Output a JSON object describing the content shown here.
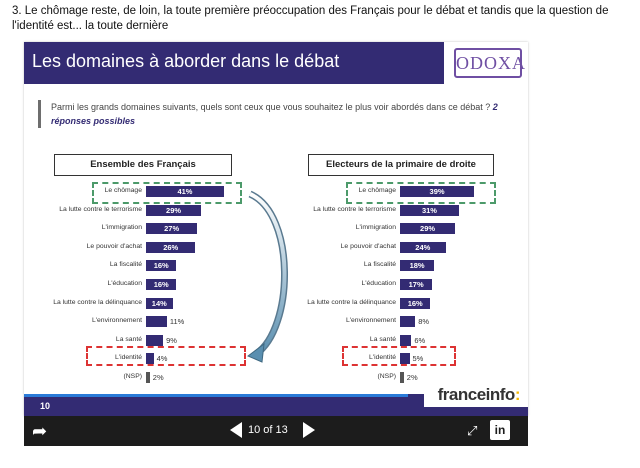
{
  "article": {
    "heading": "3. Le chômage reste, de loin, la toute première préoccupation des Français pour le débat et tandis que la question de l'identité est... la toute dernière"
  },
  "slide": {
    "title": "Les domaines à aborder dans le débat",
    "logo": "ODOXA",
    "question": "Parmi les grands domaines suivants, quels sont ceux que vous souhaitez le plus voir abordés dans ce débat ?",
    "question_emphasis": "2 réponses possibles",
    "page_number": "10",
    "brand": "franceinfo",
    "brand_colon": ":",
    "accent_color": "#332b73",
    "brand_color": "#f5b800"
  },
  "chart_data": [
    {
      "type": "bar",
      "title": "Ensemble des Français",
      "categories": [
        "Le chômage",
        "La lutte contre le terrorisme",
        "L'immigration",
        "Le pouvoir d'achat",
        "La fiscalité",
        "L'éducation",
        "La lutte contre la délinquance",
        "L'environnement",
        "La santé",
        "L'identité",
        "(NSP)"
      ],
      "values": [
        41,
        29,
        27,
        26,
        16,
        16,
        14,
        11,
        9,
        4,
        2
      ],
      "labels": [
        "41%",
        "29%",
        "27%",
        "26%",
        "16%",
        "16%",
        "14%",
        "11%",
        "9%",
        "4%",
        "2%"
      ]
    },
    {
      "type": "bar",
      "title": "Electeurs de la primaire de droite",
      "categories": [
        "Le chômage",
        "La lutte contre le terrorisme",
        "L'immigration",
        "Le pouvoir d'achat",
        "La fiscalité",
        "L'éducation",
        "La lutte contre la délinquance",
        "L'environnement",
        "La santé",
        "L'identité",
        "(NSP)"
      ],
      "values": [
        39,
        31,
        29,
        24,
        18,
        17,
        16,
        8,
        6,
        5,
        2
      ],
      "labels": [
        "39%",
        "31%",
        "29%",
        "24%",
        "18%",
        "17%",
        "16%",
        "8%",
        "6%",
        "5%",
        "2%"
      ]
    }
  ],
  "controls": {
    "slide_counter": "10 of 13",
    "share_icon": "share-arrow-icon",
    "prev_icon": "prev-triangle-icon",
    "next_icon": "next-triangle-icon",
    "expand_icon": "expand-icon",
    "linkedin_label": "in"
  }
}
